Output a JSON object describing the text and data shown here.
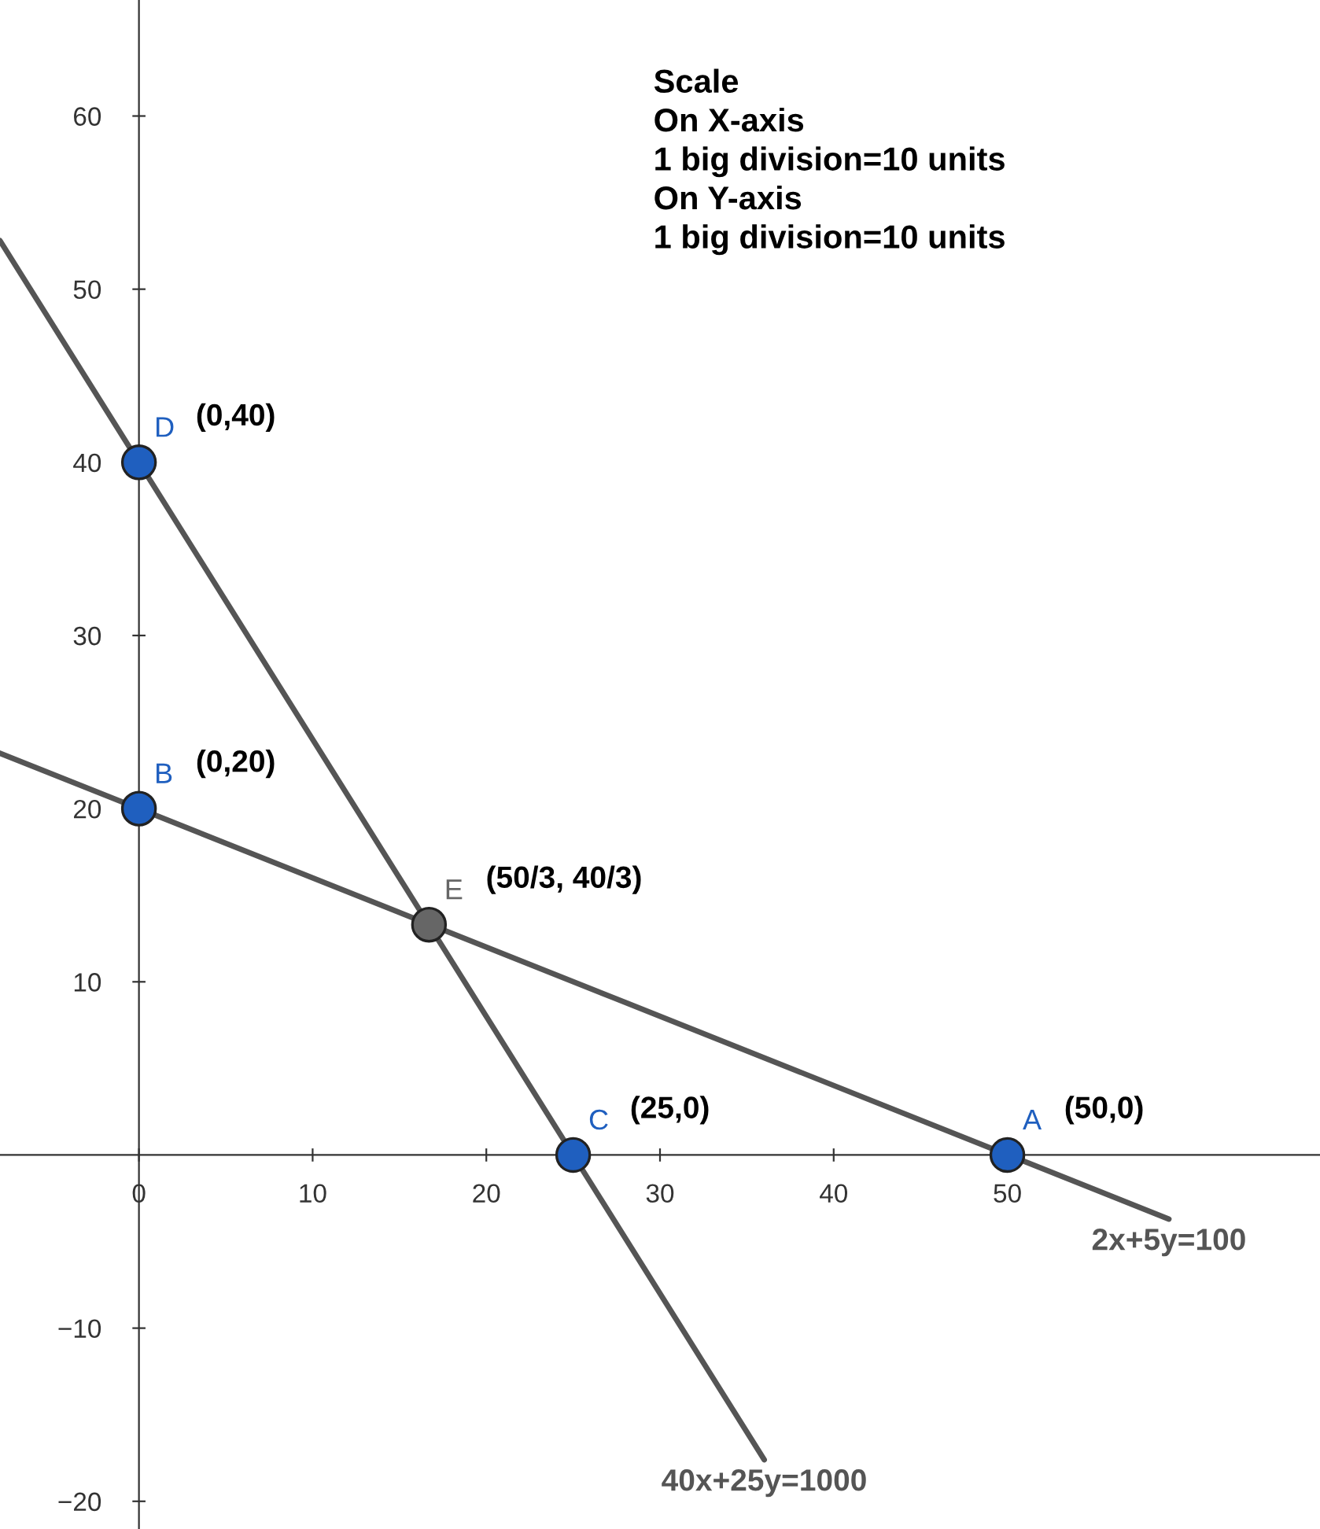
{
  "chart_data": {
    "type": "line",
    "xlim": [
      -8,
      68
    ],
    "ylim": [
      -21.6,
      66.7
    ],
    "xticks": [
      0,
      10,
      20,
      30,
      40,
      50
    ],
    "yticks": [
      {
        "value": -20,
        "label": "−20"
      },
      {
        "value": -10,
        "label": "−10"
      },
      10,
      20,
      30,
      40,
      50,
      60
    ],
    "grid": false,
    "legend": false,
    "series": [
      {
        "name": "2x+5y=100",
        "color": "#555555",
        "x": [
          -8,
          59.3
        ],
        "values": [
          23.2,
          -3.7
        ]
      },
      {
        "name": "40x+25y=1000",
        "color": "#555555",
        "x": [
          -8,
          36
        ],
        "values": [
          52.8,
          -17.6
        ]
      },
      {
        "name": "D",
        "type": "scatter",
        "color": "#1f5fbf",
        "x": [
          0
        ],
        "values": [
          40
        ]
      },
      {
        "name": "B",
        "type": "scatter",
        "color": "#1f5fbf",
        "x": [
          0
        ],
        "values": [
          20
        ]
      },
      {
        "name": "E",
        "type": "scatter",
        "color": "#666666",
        "x": [
          16.7
        ],
        "values": [
          13.3
        ]
      },
      {
        "name": "C",
        "type": "scatter",
        "color": "#1f5fbf",
        "x": [
          25
        ],
        "values": [
          0
        ]
      },
      {
        "name": "A",
        "type": "scatter",
        "color": "#1f5fbf",
        "x": [
          50
        ],
        "values": [
          0
        ]
      }
    ],
    "annotations": [
      "Scale\nOn X-axis\n1 big division=10 units\nOn Y-axis\n1 big division=10 units",
      {
        "text": "(0,40)",
        "x": 0,
        "y": 40
      },
      {
        "text": "(0,20)",
        "x": 0,
        "y": 20
      },
      {
        "text": "(50/3, 40/3)",
        "x": 16.7,
        "y": 13.3
      },
      {
        "text": "(25,0)",
        "x": 25,
        "y": 0
      },
      {
        "text": "(50,0)",
        "x": 50,
        "y": 0
      }
    ]
  }
}
